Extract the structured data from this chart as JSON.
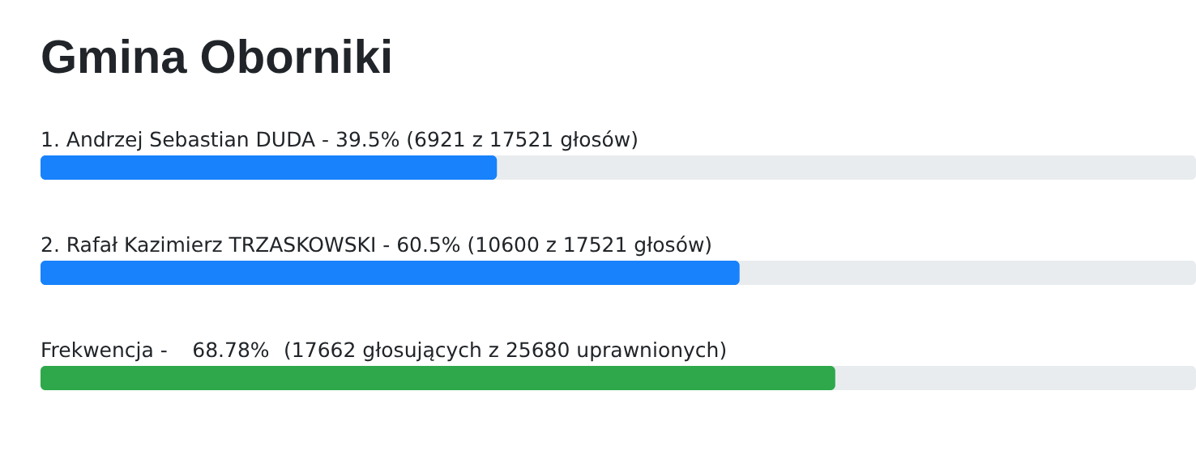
{
  "chart_data": {
    "type": "bar",
    "orientation": "horizontal",
    "title": "Gmina Oborniki",
    "categories": [
      "1. Andrzej Sebastian DUDA -",
      "2. Rafał Kazimierz TRZASKOWSKI -",
      "Frekwencja -"
    ],
    "values": [
      39.5,
      60.5,
      68.78
    ],
    "value_labels": [
      "39.5%",
      "60.5%",
      "68.78%"
    ],
    "annotations": [
      "(6921 z 17521 głosów)",
      "(10600 z 17521 głosów)",
      "(17662 głosujących z 25680 uprawnionych)"
    ],
    "colors": [
      "#1782fb",
      "#1782fb",
      "#2ea84b"
    ],
    "xlim": [
      0,
      100
    ],
    "tick_labels": false
  }
}
